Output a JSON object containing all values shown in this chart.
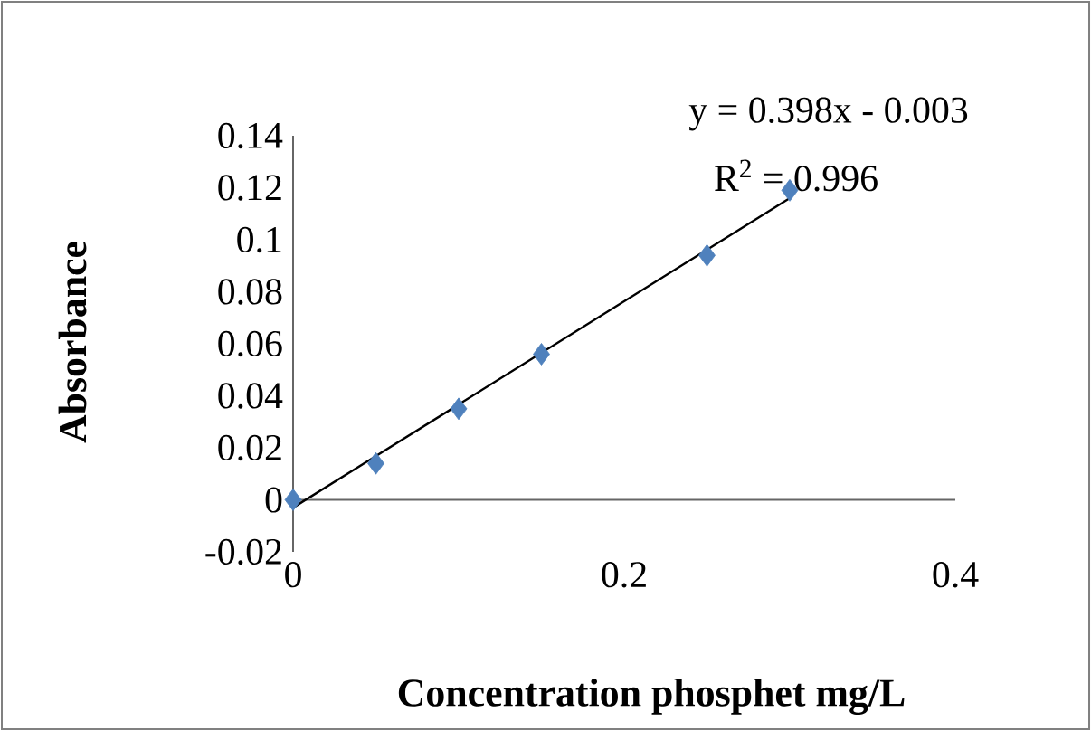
{
  "chart_data": {
    "type": "scatter",
    "xlabel": "Concentration  phosphet mg/L",
    "ylabel": "Absorbance",
    "annotations": [
      "y = 0.398x - 0.003",
      "R$^{2}$ = 0.996"
    ],
    "series": [
      {
        "color": "#4f81bd",
        "marker": "diamond",
        "x": [
          0,
          0.05,
          0.1,
          0.15,
          0.25,
          0.3
        ],
        "values": [
          0,
          0.014,
          0.035,
          0.056,
          0.094,
          0.119
        ]
      },
      {
        "type": "line",
        "color": "#000000",
        "marker": "none",
        "x": [
          0,
          0.3
        ],
        "values": [
          -0.003,
          0.116
        ]
      }
    ],
    "xlim": [
      0,
      0.4
    ],
    "ylim": [
      -0.02,
      0.14
    ],
    "xticks": [
      0,
      0.2,
      0.4
    ],
    "yticks": [
      -0.02,
      0,
      0.02,
      0.04,
      0.06,
      0.08,
      0.1,
      0.12,
      0.14
    ],
    "grid": false
  }
}
